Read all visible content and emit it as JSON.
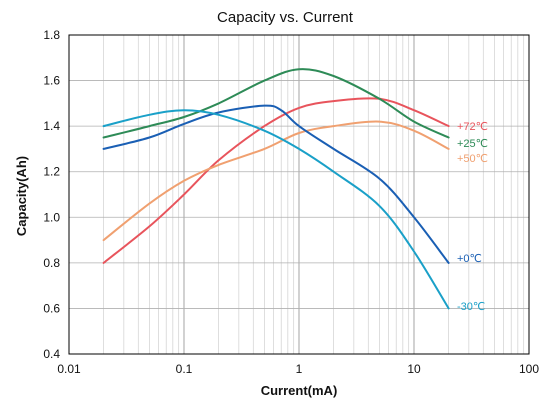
{
  "chart_data": {
    "type": "line",
    "title": "Capacity vs. Current",
    "xlabel": "Current(mA)",
    "ylabel": "Capacity(Ah)",
    "xscale": "log",
    "xlim": [
      0.01,
      100
    ],
    "ylim": [
      0.4,
      1.8
    ],
    "xticks": [
      "0.01",
      "0.1",
      "1",
      "10",
      "100"
    ],
    "yticks": [
      "0.4",
      "0.6",
      "0.8",
      "1.0",
      "1.2",
      "1.4",
      "1.6",
      "1.8"
    ],
    "grid": true,
    "series": [
      {
        "name": "+72℃",
        "color": "#e8545c",
        "points": [
          [
            0.02,
            0.8
          ],
          [
            0.05,
            0.96
          ],
          [
            0.1,
            1.1
          ],
          [
            0.2,
            1.25
          ],
          [
            0.5,
            1.4
          ],
          [
            1,
            1.48
          ],
          [
            2,
            1.51
          ],
          [
            5,
            1.52
          ],
          [
            10,
            1.47
          ],
          [
            20,
            1.4
          ]
        ]
      },
      {
        "name": "+25℃",
        "color": "#2e8b57",
        "points": [
          [
            0.02,
            1.35
          ],
          [
            0.05,
            1.4
          ],
          [
            0.1,
            1.44
          ],
          [
            0.2,
            1.5
          ],
          [
            0.5,
            1.6
          ],
          [
            1,
            1.65
          ],
          [
            2,
            1.62
          ],
          [
            5,
            1.52
          ],
          [
            10,
            1.42
          ],
          [
            20,
            1.35
          ]
        ]
      },
      {
        "name": "+50℃",
        "color": "#f0a070",
        "points": [
          [
            0.02,
            0.9
          ],
          [
            0.05,
            1.06
          ],
          [
            0.1,
            1.16
          ],
          [
            0.2,
            1.23
          ],
          [
            0.5,
            1.3
          ],
          [
            1,
            1.37
          ],
          [
            2,
            1.4
          ],
          [
            5,
            1.42
          ],
          [
            10,
            1.38
          ],
          [
            20,
            1.3
          ]
        ]
      },
      {
        "name": "+0℃",
        "color": "#1a5fb4",
        "points": [
          [
            0.02,
            1.3
          ],
          [
            0.05,
            1.35
          ],
          [
            0.1,
            1.41
          ],
          [
            0.2,
            1.46
          ],
          [
            0.5,
            1.49
          ],
          [
            0.7,
            1.47
          ],
          [
            1,
            1.4
          ],
          [
            2,
            1.3
          ],
          [
            5,
            1.17
          ],
          [
            10,
            1.0
          ],
          [
            20,
            0.8
          ]
        ]
      },
      {
        "name": "-30℃",
        "color": "#1aa0c8",
        "points": [
          [
            0.02,
            1.4
          ],
          [
            0.05,
            1.45
          ],
          [
            0.1,
            1.47
          ],
          [
            0.2,
            1.45
          ],
          [
            0.5,
            1.38
          ],
          [
            1,
            1.3
          ],
          [
            2,
            1.2
          ],
          [
            5,
            1.05
          ],
          [
            10,
            0.85
          ],
          [
            20,
            0.6
          ]
        ]
      }
    ]
  }
}
